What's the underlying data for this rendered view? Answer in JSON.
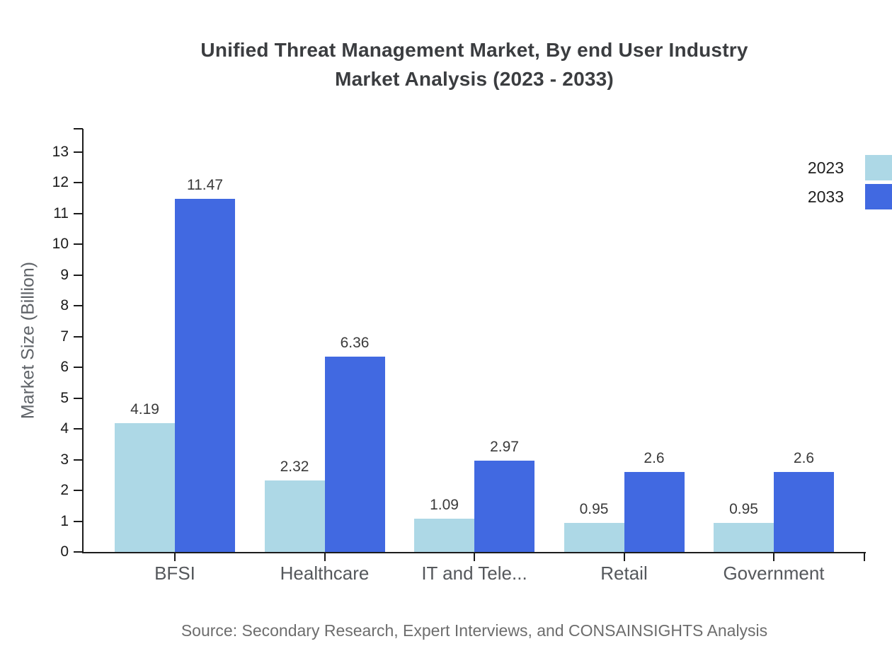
{
  "chart_data": {
    "type": "bar",
    "title_lines": [
      "Unified Threat Management Market, By end User Industry",
      "Market Analysis (2023 - 2033)"
    ],
    "ylabel": "Market Size (Billion)",
    "categories": [
      "BFSI",
      "Healthcare",
      "IT and Tele...",
      "Retail",
      "Government"
    ],
    "series": [
      {
        "name": "2023",
        "color": "#ADD8E6",
        "values": [
          4.19,
          2.32,
          1.09,
          0.95,
          0.95
        ]
      },
      {
        "name": "2033",
        "color": "#4169E1",
        "values": [
          11.47,
          6.36,
          2.97,
          2.6,
          2.6
        ]
      }
    ],
    "ylim": [
      0,
      13
    ],
    "yticks": [
      0,
      1,
      2,
      3,
      4,
      5,
      6,
      7,
      8,
      9,
      10,
      11,
      12,
      13
    ],
    "grid": false,
    "value_labels": true,
    "legend_position": "top-right"
  },
  "source_note": "Source: Secondary Research, Expert Interviews, and CONSAINSIGHTS Analysis",
  "colors": {
    "series_2023": "#ADD8E6",
    "series_2033": "#4169E1",
    "title_text": "#3b3d40",
    "axis": "#1c1c1c",
    "tick_label": "#1a1a1a",
    "category_label": "#55585c",
    "value_label": "#3a3a3a",
    "source_text": "#6d6d6d"
  }
}
